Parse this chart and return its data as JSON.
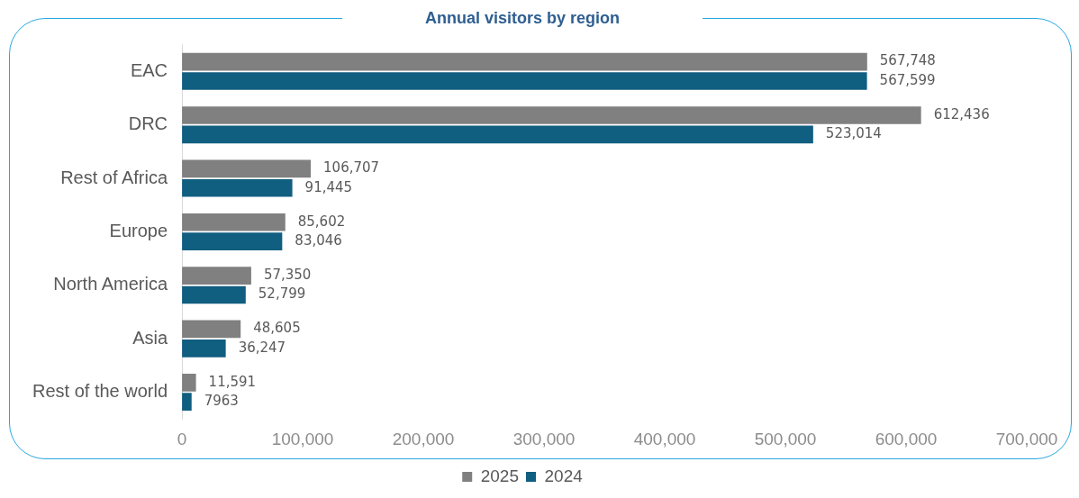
{
  "chart_data": {
    "type": "bar",
    "orientation": "horizontal",
    "title": "Annual visitors by region",
    "categories": [
      "EAC",
      "DRC",
      "Rest of Africa",
      "Europe",
      "North America",
      "Asia",
      "Rest of the world"
    ],
    "series": [
      {
        "name": "2025",
        "color": "#808080",
        "values": [
          567748,
          612436,
          106707,
          85602,
          57350,
          48605,
          11591
        ],
        "value_labels": [
          "567,748",
          "612,436",
          "106,707",
          "85,602",
          "57,350",
          "48,605",
          "11,591"
        ]
      },
      {
        "name": "2024",
        "color": "#105e80",
        "values": [
          567599,
          523014,
          91445,
          83046,
          52799,
          36247,
          7963
        ],
        "value_labels": [
          "567,599",
          "523,014",
          "91,445",
          "83,046",
          "52,799",
          "36,247",
          "7963"
        ]
      }
    ],
    "xlim": [
      0,
      700000
    ],
    "xticks": [
      0,
      {
        "value": 100000,
        "label": "100,000"
      },
      {
        "value": 200000,
        "label": "200,000"
      },
      {
        "value": 300000,
        "label": "300,000"
      },
      {
        "value": 400000,
        "label": "400,000"
      },
      {
        "value": 500000,
        "label": "500,000"
      },
      {
        "value": 600000,
        "label": "600,000"
      },
      {
        "value": 700000,
        "label": "700,000"
      }
    ],
    "grid": false,
    "legend": "bottom"
  }
}
